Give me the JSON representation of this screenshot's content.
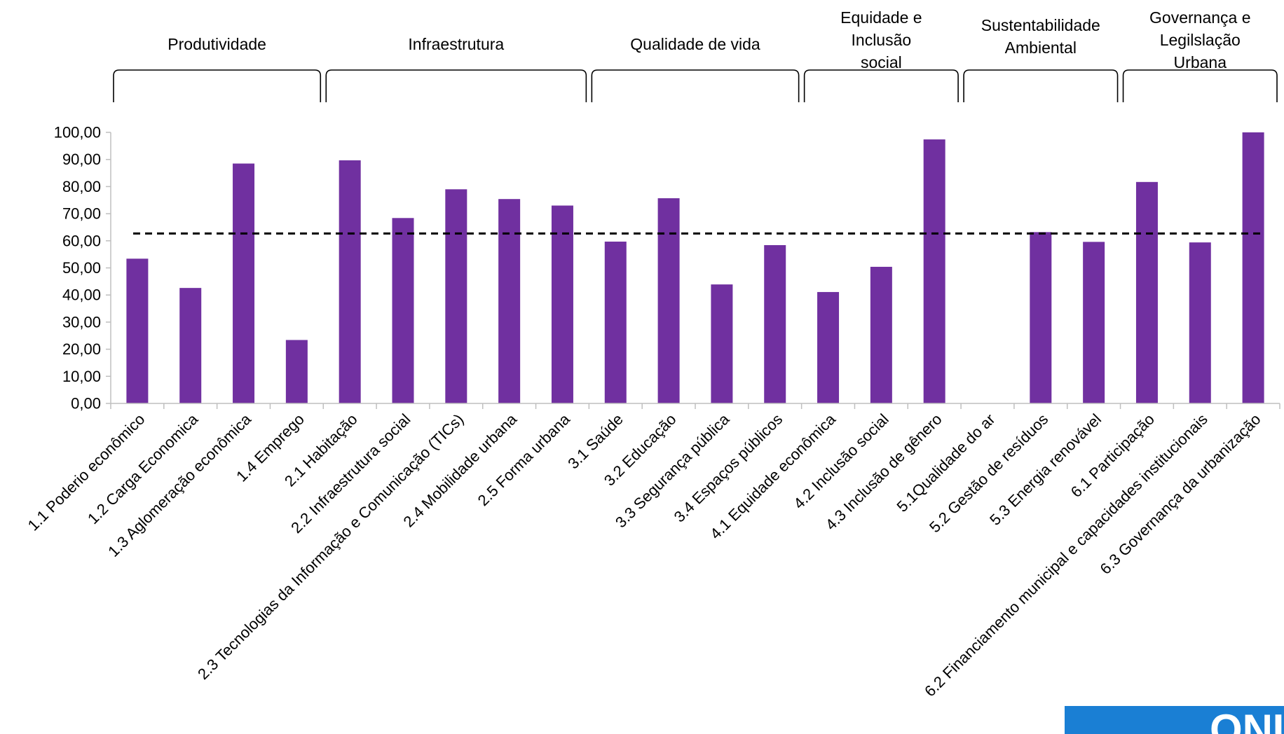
{
  "chart_data": {
    "type": "bar",
    "title": "",
    "xlabel": "",
    "ylabel": "",
    "ylim": [
      0,
      100
    ],
    "ytick_step": 10,
    "ytick_labels": [
      "0,00",
      "10,00",
      "20,00",
      "30,00",
      "40,00",
      "50,00",
      "60,00",
      "70,00",
      "80,00",
      "90,00",
      "100,00"
    ],
    "grid": false,
    "legend": "none",
    "bar_color": "#7030a0",
    "categories": [
      "1.1 Poderio econômico",
      "1.2 Carga Economica",
      "1.3 Aglomeração econômica",
      "1.4 Emprego",
      "2.1 Habitação",
      "2.2 Infraestrutura social",
      "2.3 Tecnologias da Informação e Comunicação (TICs)",
      "2.4 Mobilidade urbana",
      "2.5 Forma urbana",
      "3.1 Saúde",
      "3.2 Educação",
      "3.3 Segurança pública",
      "3.4 Espaços públicos",
      "4.1 Equidade econômica",
      "4.2 Inclusão social",
      "4.3 Inclusão de gênero",
      "5.1Qualidade do ar",
      "5.2 Gestão de resíduos",
      "5.3 Energia renovável",
      "6.1 Participação",
      "6.2 Financiamento municipal e capacidades institucionais",
      "6.3 Governança da urbanização"
    ],
    "values": [
      53.4,
      42.6,
      88.5,
      23.4,
      89.7,
      68.4,
      79.0,
      75.4,
      73.0,
      59.7,
      75.7,
      43.9,
      58.4,
      41.1,
      50.4,
      97.4,
      0,
      63.2,
      59.6,
      81.7,
      59.4,
      100.0
    ],
    "reference_line": {
      "style": "dashed",
      "color": "#000000",
      "value": 62.7
    },
    "groups": [
      {
        "label": [
          "Produtividade"
        ],
        "start": 0,
        "end": 3
      },
      {
        "label": [
          "Infraestrutura"
        ],
        "start": 4,
        "end": 8
      },
      {
        "label": [
          "Qualidade de vida"
        ],
        "start": 9,
        "end": 12
      },
      {
        "label": [
          "Equidade e",
          "Inclusão",
          "social"
        ],
        "start": 13,
        "end": 15
      },
      {
        "label": [
          "Sustentabilidade",
          "Ambiental"
        ],
        "start": 16,
        "end": 18
      },
      {
        "label": [
          "Governança e",
          "Legilslação",
          "Urbana"
        ],
        "start": 19,
        "end": 21
      }
    ]
  },
  "logo": {
    "text": "ONU",
    "color": "#1a7fd4"
  }
}
